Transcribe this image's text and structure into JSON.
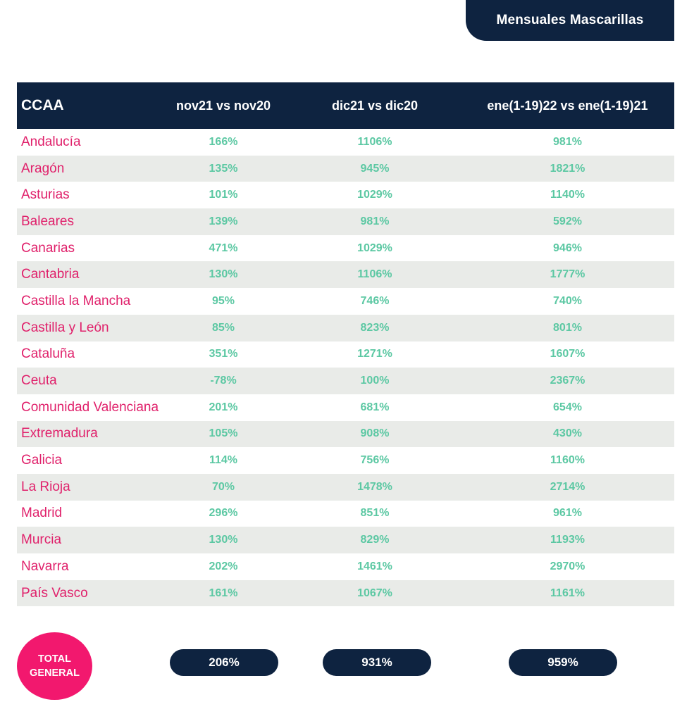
{
  "title": "Mensuales Mascarillas",
  "table": {
    "headers": [
      "CCAA",
      "nov21 vs nov20",
      "dic21 vs dic20",
      "ene(1-19)22 vs ene(1-19)21"
    ],
    "rows": [
      [
        "Andalucía",
        "166%",
        "1106%",
        "981%"
      ],
      [
        "Aragón",
        "135%",
        "945%",
        "1821%"
      ],
      [
        "Asturias",
        "101%",
        "1029%",
        "1140%"
      ],
      [
        "Baleares",
        "139%",
        "981%",
        "592%"
      ],
      [
        "Canarias",
        "471%",
        "1029%",
        "946%"
      ],
      [
        "Cantabria",
        "130%",
        "1106%",
        "1777%"
      ],
      [
        "Castilla la Mancha",
        "95%",
        "746%",
        "740%"
      ],
      [
        "Castilla y León",
        "85%",
        "823%",
        "801%"
      ],
      [
        "Cataluña",
        "351%",
        "1271%",
        "1607%"
      ],
      [
        "Ceuta",
        "-78%",
        "100%",
        "2367%"
      ],
      [
        "Comunidad Valenciana",
        "201%",
        "681%",
        "654%"
      ],
      [
        "Extremadura",
        "105%",
        "908%",
        "430%"
      ],
      [
        "Galicia",
        "114%",
        "756%",
        "1160%"
      ],
      [
        "La Rioja",
        "70%",
        "1478%",
        "2714%"
      ],
      [
        "Madrid",
        "296%",
        "851%",
        "961%"
      ],
      [
        "Murcia",
        "130%",
        "829%",
        "1193%"
      ],
      [
        "Navarra",
        "202%",
        "1461%",
        "2970%"
      ],
      [
        "País Vasco",
        "161%",
        "1067%",
        "1161%"
      ]
    ]
  },
  "total": {
    "label_line1": "TOTAL",
    "label_line2": "GENERAL",
    "values": [
      "206%",
      "931%",
      "959%"
    ]
  },
  "colors": {
    "navy": "#0e2340",
    "region_pink": "#e0216b",
    "value_green": "#5cc8a3",
    "badge_pink": "#f2186e",
    "stripe_gray": "#e9ebe8"
  }
}
